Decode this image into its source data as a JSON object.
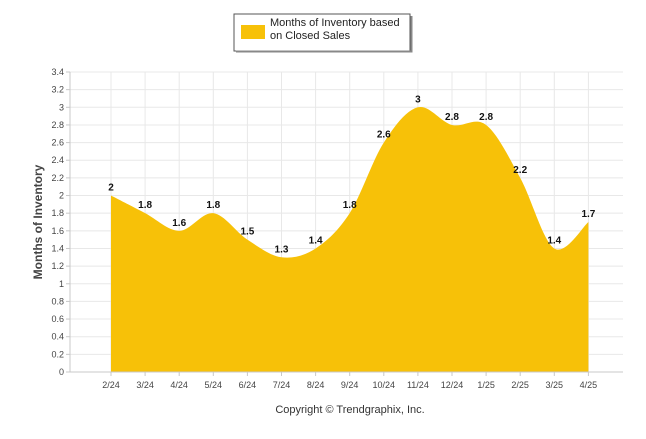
{
  "chart_data": {
    "type": "area",
    "categories": [
      "2/24",
      "3/24",
      "4/24",
      "5/24",
      "6/24",
      "7/24",
      "8/24",
      "9/24",
      "10/24",
      "11/24",
      "12/24",
      "1/25",
      "2/25",
      "3/25",
      "4/25"
    ],
    "series": [
      {
        "name": "Months of Inventory based on Closed Sales",
        "name_lines": [
          "Months of Inventory based",
          "on Closed Sales"
        ],
        "values": [
          2,
          1.8,
          1.6,
          1.8,
          1.5,
          1.3,
          1.4,
          1.8,
          2.6,
          3,
          2.8,
          2.8,
          2.2,
          1.4,
          1.7
        ],
        "labels": [
          "2",
          "1.8",
          "1.6",
          "1.8",
          "1.5",
          "1.3",
          "1.4",
          "1.8",
          "2.6",
          "3",
          "2.8",
          "2.8",
          "2.2",
          "1.4",
          "1.7"
        ],
        "color": "#F7C108"
      }
    ],
    "title": "",
    "xlabel": "",
    "ylabel": "Months of Inventory",
    "ylim": [
      0,
      3.4
    ],
    "yticks": [
      0,
      0.2,
      0.4,
      0.6,
      0.8,
      1,
      1.2,
      1.4,
      1.6,
      1.8,
      2,
      2.2,
      2.4,
      2.6,
      2.8,
      3,
      3.2,
      3.4
    ],
    "ytick_labels": [
      "0",
      "0.2",
      "0.4",
      "0.6",
      "0.8",
      "1",
      "1.2",
      "1.4",
      "1.6",
      "1.8",
      "2",
      "2.2",
      "2.4",
      "2.6",
      "2.8",
      "3",
      "3.2",
      "3.4"
    ],
    "grid": true,
    "legend": "top-center",
    "gridColor": "#E8E8E8",
    "axisColor": "#C8C8C8"
  },
  "footer": {
    "copyright": "Copyright © Trendgraphix, Inc."
  }
}
